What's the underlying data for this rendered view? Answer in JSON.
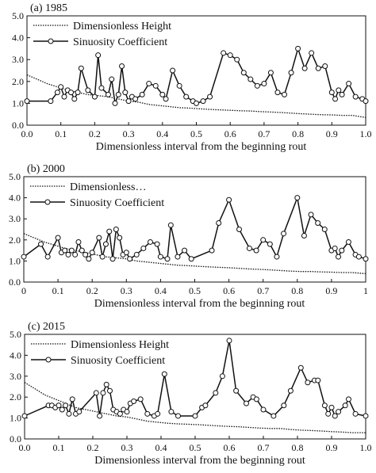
{
  "chart_data": [
    {
      "type": "line",
      "panel_label": "(a) 1985",
      "xlabel": "Dimensionless interval from the beginning rout",
      "ylabel": "",
      "xlim": [
        0,
        1
      ],
      "ylim": [
        0,
        5
      ],
      "x_ticks": [
        "0.0",
        "0.1",
        "0.2",
        "0.3",
        "0.4",
        "0.5",
        "0.6",
        "0.7",
        "0.8",
        "0.9",
        "1.0"
      ],
      "y_ticks": [
        "0.0",
        "1.0",
        "2.0",
        "3.0",
        "4.0",
        "5.0"
      ],
      "legend": {
        "position": "top-left",
        "entries": [
          "Dimensionless Height",
          "Sinuosity Coefficient"
        ]
      },
      "series": [
        {
          "name": "Dimensionless Height",
          "style": "dotted",
          "x": [
            0,
            0.03,
            0.06,
            0.09,
            0.12,
            0.15,
            0.18,
            0.21,
            0.24,
            0.27,
            0.3,
            0.33,
            0.36,
            0.39,
            0.42,
            0.45,
            0.48,
            0.51,
            0.54,
            0.57,
            0.6,
            0.63,
            0.66,
            0.69,
            0.72,
            0.75,
            0.78,
            0.81,
            0.84,
            0.87,
            0.9,
            0.93,
            0.96,
            1.0
          ],
          "y": [
            2.3,
            2.1,
            1.9,
            1.75,
            1.6,
            1.5,
            1.4,
            1.35,
            1.3,
            1.2,
            1.1,
            1.05,
            0.95,
            0.9,
            0.85,
            0.8,
            0.78,
            0.75,
            0.72,
            0.7,
            0.68,
            0.66,
            0.65,
            0.62,
            0.6,
            0.58,
            0.55,
            0.52,
            0.5,
            0.48,
            0.47,
            0.45,
            0.45,
            0.35
          ]
        },
        {
          "name": "Sinuosity Coefficient",
          "style": "solid-circle",
          "x": [
            0,
            0.07,
            0.09,
            0.1,
            0.11,
            0.12,
            0.13,
            0.14,
            0.15,
            0.16,
            0.18,
            0.2,
            0.21,
            0.22,
            0.24,
            0.25,
            0.26,
            0.27,
            0.28,
            0.29,
            0.3,
            0.31,
            0.32,
            0.34,
            0.36,
            0.38,
            0.4,
            0.41,
            0.43,
            0.45,
            0.47,
            0.49,
            0.5,
            0.52,
            0.54,
            0.58,
            0.6,
            0.62,
            0.64,
            0.66,
            0.68,
            0.7,
            0.72,
            0.74,
            0.76,
            0.78,
            0.8,
            0.82,
            0.84,
            0.86,
            0.88,
            0.9,
            0.91,
            0.92,
            0.93,
            0.95,
            0.97,
            0.99,
            1.0
          ],
          "y": [
            1.1,
            1.1,
            1.5,
            1.75,
            1.3,
            1.6,
            1.5,
            1.2,
            1.5,
            2.6,
            1.6,
            1.3,
            3.2,
            1.7,
            1.4,
            2.1,
            1.0,
            1.4,
            2.7,
            1.5,
            1.1,
            1.3,
            1.2,
            1.4,
            1.9,
            1.8,
            1.4,
            1.2,
            2.5,
            1.8,
            1.3,
            1.1,
            1.0,
            1.1,
            1.3,
            3.3,
            3.2,
            3.0,
            2.4,
            2.1,
            1.8,
            1.9,
            2.4,
            1.5,
            1.4,
            2.4,
            3.5,
            2.6,
            3.3,
            2.6,
            2.7,
            1.5,
            1.2,
            1.6,
            1.4,
            1.9,
            1.3,
            1.2,
            1.1
          ]
        }
      ]
    },
    {
      "type": "line",
      "panel_label": "(b) 2000",
      "xlabel": "Dimensionless interval from the beginning rout",
      "ylabel": "",
      "xlim": [
        0,
        1
      ],
      "ylim": [
        0,
        5
      ],
      "x_ticks": [
        "0",
        "0.1",
        "0.2",
        "0.3",
        "0.4",
        "0.5",
        "0.6",
        "0.7",
        "0.8",
        "0.9",
        "1"
      ],
      "y_ticks": [
        "0.0",
        "1.0",
        "2.0",
        "3.0",
        "4.0",
        "5.0"
      ],
      "legend": {
        "position": "top-left",
        "entries": [
          "Dimensionless…",
          "Sinuosity Coefficient"
        ]
      },
      "series": [
        {
          "name": "Dimensionless…",
          "style": "dotted",
          "x": [
            0,
            0.03,
            0.06,
            0.09,
            0.12,
            0.15,
            0.18,
            0.21,
            0.24,
            0.27,
            0.3,
            0.33,
            0.36,
            0.39,
            0.42,
            0.45,
            0.48,
            0.51,
            0.54,
            0.57,
            0.6,
            0.63,
            0.66,
            0.69,
            0.72,
            0.75,
            0.78,
            0.81,
            0.84,
            0.87,
            0.9,
            0.93,
            0.96,
            1.0
          ],
          "y": [
            2.3,
            2.1,
            1.9,
            1.75,
            1.6,
            1.5,
            1.4,
            1.3,
            1.2,
            1.15,
            1.1,
            1.0,
            0.95,
            0.9,
            0.85,
            0.8,
            0.78,
            0.75,
            0.72,
            0.7,
            0.68,
            0.65,
            0.62,
            0.6,
            0.58,
            0.55,
            0.52,
            0.5,
            0.5,
            0.48,
            0.47,
            0.45,
            0.45,
            0.4
          ]
        },
        {
          "name": "Sinuosity Coefficient",
          "style": "solid-circle",
          "x": [
            0,
            0.05,
            0.07,
            0.1,
            0.11,
            0.12,
            0.13,
            0.14,
            0.15,
            0.16,
            0.17,
            0.18,
            0.19,
            0.2,
            0.22,
            0.23,
            0.24,
            0.25,
            0.26,
            0.27,
            0.28,
            0.29,
            0.3,
            0.31,
            0.33,
            0.35,
            0.37,
            0.39,
            0.4,
            0.42,
            0.43,
            0.45,
            0.47,
            0.49,
            0.55,
            0.57,
            0.6,
            0.63,
            0.66,
            0.68,
            0.7,
            0.72,
            0.74,
            0.76,
            0.8,
            0.82,
            0.84,
            0.86,
            0.88,
            0.9,
            0.91,
            0.92,
            0.93,
            0.95,
            0.97,
            0.98,
            1.0
          ],
          "y": [
            1.2,
            1.8,
            1.2,
            2.1,
            1.4,
            1.5,
            1.3,
            1.5,
            1.3,
            1.9,
            1.5,
            1.3,
            1.1,
            1.4,
            2.1,
            1.2,
            1.8,
            2.4,
            1.1,
            2.5,
            2.1,
            1.3,
            1.4,
            1.1,
            1.3,
            1.6,
            1.9,
            1.8,
            1.2,
            1.1,
            2.7,
            1.2,
            1.5,
            1.1,
            1.5,
            2.8,
            3.9,
            2.5,
            1.6,
            1.5,
            2.0,
            1.8,
            1.2,
            2.3,
            4.0,
            2.2,
            3.2,
            2.8,
            2.5,
            1.5,
            1.6,
            1.2,
            1.5,
            1.9,
            1.3,
            1.2,
            1.1
          ]
        }
      ]
    },
    {
      "type": "line",
      "panel_label": "(c) 2015",
      "xlabel": "Dimensionless interval from the beginning rout",
      "ylabel": "",
      "xlim": [
        0,
        1
      ],
      "ylim": [
        0,
        5
      ],
      "x_ticks": [
        "0.0",
        "0.1",
        "0.2",
        "0.3",
        "0.4",
        "0.5",
        "0.6",
        "0.7",
        "0.8",
        "0.9",
        "1.0"
      ],
      "y_ticks": [
        "0.0",
        "1.0",
        "2.0",
        "3.0",
        "4.0",
        "5.0"
      ],
      "legend": {
        "position": "top-left",
        "entries": [
          "Dimensionless Height",
          "Sinuosity Coefficient"
        ]
      },
      "series": [
        {
          "name": "Dimensionless Height",
          "style": "dotted",
          "x": [
            0,
            0.03,
            0.06,
            0.09,
            0.12,
            0.15,
            0.18,
            0.21,
            0.24,
            0.27,
            0.3,
            0.33,
            0.36,
            0.39,
            0.42,
            0.45,
            0.48,
            0.51,
            0.54,
            0.57,
            0.6,
            0.63,
            0.66,
            0.69,
            0.72,
            0.75,
            0.78,
            0.81,
            0.84,
            0.87,
            0.9,
            0.93,
            0.96,
            1.0
          ],
          "y": [
            2.7,
            2.4,
            2.1,
            1.9,
            1.7,
            1.5,
            1.4,
            1.3,
            1.2,
            1.1,
            1.05,
            0.95,
            0.85,
            0.8,
            0.75,
            0.72,
            0.7,
            0.68,
            0.65,
            0.62,
            0.6,
            0.58,
            0.55,
            0.52,
            0.5,
            0.5,
            0.45,
            0.42,
            0.4,
            0.38,
            0.35,
            0.33,
            0.3,
            0.3
          ]
        },
        {
          "name": "Sinuosity Coefficient",
          "style": "solid-circle",
          "x": [
            0,
            0.07,
            0.08,
            0.09,
            0.1,
            0.11,
            0.12,
            0.13,
            0.14,
            0.15,
            0.16,
            0.21,
            0.22,
            0.23,
            0.24,
            0.25,
            0.26,
            0.27,
            0.28,
            0.29,
            0.3,
            0.31,
            0.32,
            0.34,
            0.36,
            0.38,
            0.39,
            0.41,
            0.43,
            0.45,
            0.5,
            0.52,
            0.53,
            0.56,
            0.58,
            0.6,
            0.62,
            0.65,
            0.67,
            0.68,
            0.7,
            0.73,
            0.76,
            0.78,
            0.81,
            0.83,
            0.85,
            0.86,
            0.88,
            0.89,
            0.9,
            0.91,
            0.92,
            0.94,
            0.95,
            0.97,
            1.0
          ],
          "y": [
            1.1,
            1.6,
            1.6,
            1.5,
            1.6,
            1.4,
            1.6,
            1.2,
            1.9,
            1.2,
            1.3,
            2.2,
            1.1,
            2.2,
            2.6,
            2.3,
            1.4,
            1.3,
            1.2,
            1.4,
            1.3,
            1.7,
            1.8,
            1.9,
            1.2,
            1.1,
            1.2,
            3.1,
            1.3,
            1.1,
            1.1,
            1.5,
            1.6,
            2.2,
            3.0,
            4.7,
            2.3,
            1.7,
            2.0,
            1.9,
            1.4,
            1.1,
            1.6,
            2.3,
            3.4,
            2.7,
            2.8,
            2.8,
            1.6,
            1.2,
            1.5,
            1.1,
            1.3,
            1.6,
            1.9,
            1.2,
            1.1
          ]
        }
      ]
    }
  ]
}
